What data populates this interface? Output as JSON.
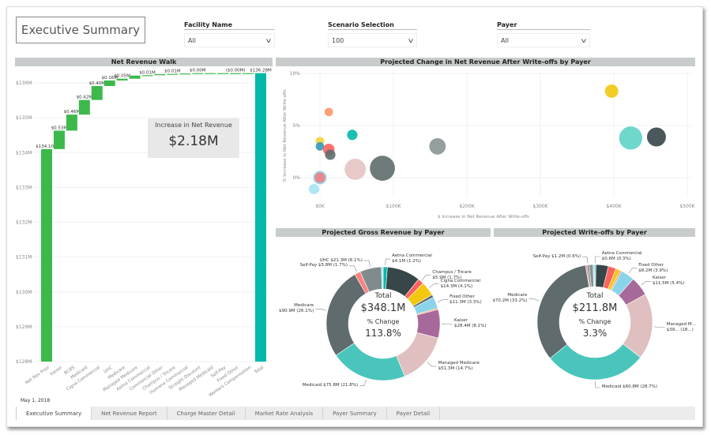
{
  "header": {
    "title": "Executive Summary"
  },
  "slicers": [
    {
      "label": "Facility Name",
      "value": "All"
    },
    {
      "label": "Scenario Selection",
      "value": "100"
    },
    {
      "label": "Payer",
      "value": "All"
    }
  ],
  "date": "May 1, 2018",
  "tabs": [
    "Executive Summary",
    "Net Revenue Report",
    "Charge Master Detail",
    "Market Rate Analysis",
    "Payer Summary",
    "Payer Detail"
  ],
  "kpi": {
    "label": "Increase in Net Revenue",
    "value": "$2.18M"
  },
  "colors": {
    "increase": "#3DB94B",
    "total": "#01B8AA",
    "header": "#C8CCCC"
  },
  "chart_data": [
    {
      "type": "waterfall",
      "title": "Net Revenue Walk",
      "ylim": [
        128,
        136.5
      ],
      "yticks": [
        "$128M",
        "$129M",
        "$130M",
        "$131M",
        "$132M",
        "$133M",
        "$134M",
        "$135M",
        "$136M"
      ],
      "categories": [
        "Net Rev Prior",
        "Kaiser",
        "BCBS",
        "Medicaid",
        "Cigna Commercial",
        "UHC",
        "Medicare",
        "Managed Medicare",
        "Aetna Commercial",
        "Commercial Other",
        "Champus / Tricare",
        "Humana Commercial",
        "Straight Discount",
        "Managed Medicaid",
        "Self-Pay",
        "Fixed Other",
        "Workers Compensation",
        "Total"
      ],
      "values": [
        134.1,
        0.53,
        0.46,
        0.42,
        0.4,
        0.16,
        0.05,
        0.09,
        0.01,
        0.03,
        0.01,
        0.01,
        0.01,
        0.0,
        0.0,
        0.0,
        0.0,
        136.28
      ],
      "labels": [
        "$134.10M",
        "$0.53M",
        "$0.46M",
        "$0.42M",
        "$0.40M",
        "$0.16M",
        "$0.05M",
        "",
        "$0.01M",
        "",
        "$0.01M",
        "",
        "$0.00M",
        "",
        "",
        "($0.00M)",
        "",
        "$136.28M"
      ]
    },
    {
      "type": "scatter",
      "title": "Projected Change in Net Revenue After Write-offs by Payer",
      "xlabel": "$ Increase in Net Revenue After Write-offs",
      "ylabel": "% Increase in Net Revenue After Write-offs",
      "xlim": [
        -20,
        500
      ],
      "ylim": [
        -2.3,
        10
      ],
      "xticks": [
        {
          "v": 0,
          "t": "$0K"
        },
        {
          "v": 100,
          "t": "$100K"
        },
        {
          "v": 200,
          "t": "$200K"
        },
        {
          "v": 300,
          "t": "$300K"
        },
        {
          "v": 400,
          "t": "$400K"
        },
        {
          "v": 500,
          "t": "$500K"
        }
      ],
      "yticks": [
        {
          "v": 0,
          "t": "0%"
        },
        {
          "v": 5,
          "t": "5%"
        },
        {
          "v": 10,
          "t": "10%"
        }
      ],
      "points": [
        {
          "x": 397,
          "y": 8.3,
          "size": 2,
          "color": "#F2C80F"
        },
        {
          "x": 423,
          "y": 3.8,
          "size": 6,
          "color": "#5FD3C6"
        },
        {
          "x": 458,
          "y": 3.9,
          "size": 4,
          "color": "#374649"
        },
        {
          "x": 160,
          "y": 3.0,
          "size": 3,
          "color": "#8A9393"
        },
        {
          "x": 85,
          "y": 0.9,
          "size": 7,
          "color": "#5F6B6D"
        },
        {
          "x": 48,
          "y": 0.8,
          "size": 5,
          "color": "#E6C3C3"
        },
        {
          "x": 44,
          "y": 4.1,
          "size": 1.2,
          "color": "#01B8AA"
        },
        {
          "x": 12,
          "y": 6.3,
          "size": 0.8,
          "color": "#FE9666"
        },
        {
          "x": 0,
          "y": 3.5,
          "size": 0.8,
          "color": "#F5D33F"
        },
        {
          "x": 0,
          "y": 3.0,
          "size": 0.8,
          "color": "#3599B8"
        },
        {
          "x": 12,
          "y": 2.7,
          "size": 1.5,
          "color": "#FD625E"
        },
        {
          "x": 14,
          "y": 2.2,
          "size": 1.2,
          "color": "#5F6B6D"
        },
        {
          "x": 0,
          "y": 0.0,
          "size": 2,
          "color": "#8AD4EB"
        },
        {
          "x": 0,
          "y": 0.0,
          "size": 1.2,
          "color": "#F08080"
        },
        {
          "x": -8,
          "y": -1.1,
          "size": 1.2,
          "color": "#A6E3F5"
        }
      ]
    },
    {
      "type": "pie",
      "title": "Projected Gross Revenue by Payer",
      "center": {
        "l1": "Total",
        "v1": "$348.1M",
        "l2": "% Change",
        "v2": "113.8%"
      },
      "slices": [
        {
          "label": "Aetna Commercial",
          "detail": "$4.1M (1.2%)",
          "pct": 1.2,
          "color": "#01B8AA"
        },
        {
          "label": "",
          "detail": "",
          "pct": 9.5,
          "color": "#374649"
        },
        {
          "label": "Champus / Tricare",
          "detail": "$5.9M (1.7%)",
          "pct": 1.7,
          "color": "#FD625E"
        },
        {
          "label": "Cigna Commercial",
          "detail": "$14.3M (4.1%)",
          "pct": 4.1,
          "color": "#F2C80F"
        },
        {
          "label": "",
          "detail": "",
          "pct": 0.8,
          "color": "#5F6B6D"
        },
        {
          "label": "Fixed Other",
          "detail": "$11.3M (3.3%)",
          "pct": 3.3,
          "color": "#8AD4EB"
        },
        {
          "label": "",
          "detail": "",
          "pct": 0.4,
          "color": "#FE9666"
        },
        {
          "label": "Kaiser",
          "detail": "$28.4M (8.1%)",
          "pct": 8.1,
          "color": "#A66999"
        },
        {
          "label": "Managed Medicare",
          "detail": "$51.3M (14.7%)",
          "pct": 14.7,
          "color": "#DFBFBF"
        },
        {
          "label": "Medicaid",
          "detail": "$75.8M (21.8%)",
          "pct": 21.8,
          "color": "#4AC5BB"
        },
        {
          "label": "Medicare",
          "detail": "$90.9M (26.1%)",
          "pct": 26.1,
          "color": "#5F6B6D"
        },
        {
          "label": "Self-Pay",
          "detail": "$5.8M (1.7%)",
          "pct": 1.7,
          "color": "#FB8281"
        },
        {
          "label": "UHC",
          "detail": "$21.3M (6.1%)",
          "pct": 6.1,
          "color": "#7F8B8C"
        },
        {
          "label": "",
          "detail": "",
          "pct": 0.5,
          "color": "#A6E3F5"
        }
      ]
    },
    {
      "type": "pie",
      "title": "Projected Write-offs by Payer",
      "center": {
        "l1": "Total",
        "v1": "$211.8M",
        "l2": "% Change",
        "v2": "3.3%"
      },
      "slices": [
        {
          "label": "Aetna Commercial",
          "detail": "$0.6M (0.3%)",
          "pct": 0.3,
          "color": "#01B8AA"
        },
        {
          "label": "",
          "detail": "",
          "pct": 3.5,
          "color": "#374649"
        },
        {
          "label": "",
          "detail": "",
          "pct": 2.2,
          "color": "#FD625E"
        },
        {
          "label": "",
          "detail": "",
          "pct": 1.2,
          "color": "#F2C80F"
        },
        {
          "label": "",
          "detail": "",
          "pct": 0.5,
          "color": "#FE9666"
        },
        {
          "label": "Fixed Other",
          "detail": "$8.2M (3.9%)",
          "pct": 3.9,
          "color": "#8AD4EB"
        },
        {
          "label": "Kaiser",
          "detail": "$11.5M (5.4%)",
          "pct": 5.4,
          "color": "#A66999"
        },
        {
          "label": "Managed M...",
          "detail": "$39... (18...)",
          "pct": 18.5,
          "color": "#DFBFBF"
        },
        {
          "label": "Medicaid",
          "detail": "$60.8M (28.7%)",
          "pct": 28.7,
          "color": "#4AC5BB"
        },
        {
          "label": "Medicare",
          "detail": "$70.2M (33.2%)",
          "pct": 33.2,
          "color": "#5F6B6D"
        },
        {
          "label": "",
          "detail": "",
          "pct": 0.4,
          "color": "#FB8281"
        },
        {
          "label": "Self-Pay",
          "detail": "$1.2M (0.6%)",
          "pct": 0.6,
          "color": "#7F8B8C"
        },
        {
          "label": "",
          "detail": "",
          "pct": 1.1,
          "color": "#8A9393"
        },
        {
          "label": "",
          "detail": "",
          "pct": 0.5,
          "color": "#A6E3F5"
        }
      ]
    }
  ]
}
